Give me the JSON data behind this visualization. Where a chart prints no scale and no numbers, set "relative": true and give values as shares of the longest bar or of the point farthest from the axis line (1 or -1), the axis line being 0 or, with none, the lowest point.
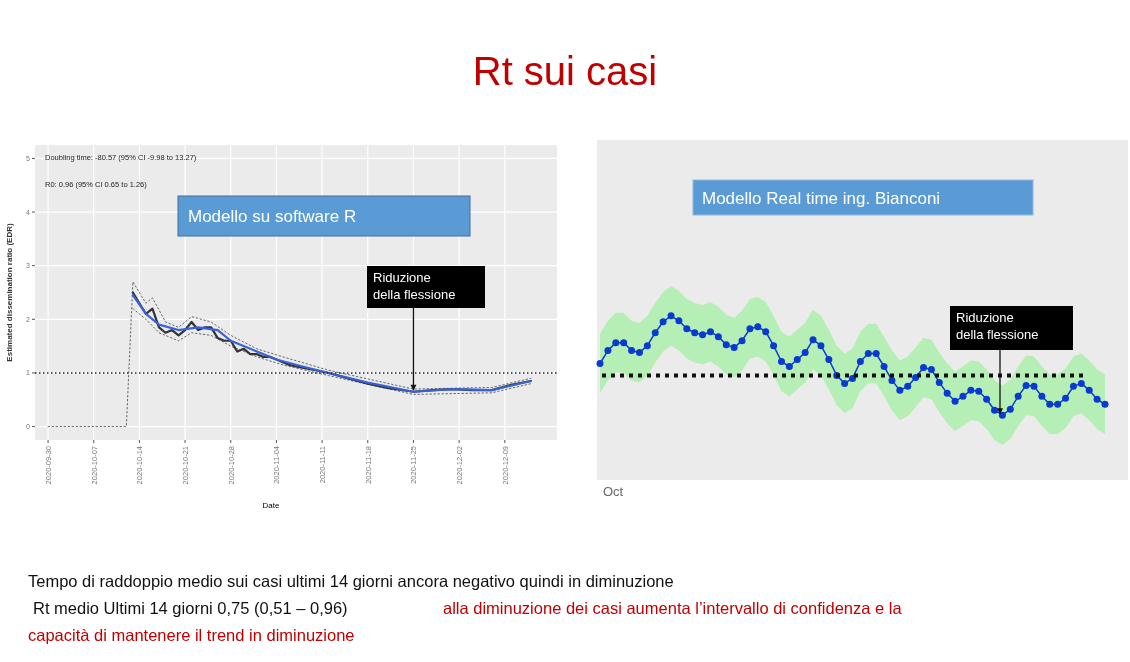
{
  "chart_data": [
    {
      "type": "line",
      "title": "Rt sui casi",
      "xlabel": "Date",
      "ylabel": "Estimated dissemination ratio (EDR)",
      "xlim": [
        "2020-09-28",
        "2020-12-17"
      ],
      "ylim": [
        -0.25,
        5.25
      ],
      "xticks": [
        "2020-09-30",
        "2020-10-07",
        "2020-10-14",
        "2020-10-21",
        "2020-10-28",
        "2020-11-04",
        "2020-11-11",
        "2020-11-18",
        "2020-11-25",
        "2020-12-02",
        "2020-12-09"
      ],
      "yticks": [
        0,
        1,
        2,
        3,
        4,
        5
      ],
      "grid": true,
      "ref_lines": [
        {
          "axis": "y",
          "value": 1,
          "color": "#222222",
          "line_style": "dotted"
        }
      ],
      "annotations": [
        "Doubling time: -80.57 (95% CI -9.98 to 13.27)",
        "R0: 0.96 (95% CI 0.65 to 1.26)",
        "Modello su software R",
        {
          "text": "Riduzione\ndella flessione",
          "x": "2020-11-25",
          "y": 0.65
        },
        "Tempo di raddoppio medio sui casi ultimi 14 giorni ancora negativo quindi in diminuzione",
        "Rt medio Ultimi 14 giorni 0,75 (0,51 – 0,96)",
        "alla diminuzione dei casi aumenta l’intervallo di confidenza e la",
        "capacità di mantenere il trend in diminuzione"
      ],
      "series": [
        {
          "color": "#666666",
          "line_style": "dotted",
          "x": [
            "2020-09-30",
            "2020-10-12",
            "2020-10-13",
            "2020-10-15",
            "2020-10-16",
            "2020-10-18",
            "2020-10-20",
            "2020-10-22",
            "2020-10-25",
            "2020-10-28",
            "2020-11-01",
            "2020-11-05",
            "2020-11-12",
            "2020-11-25",
            "2020-12-07",
            "2020-12-13"
          ],
          "values": [
            0,
            0,
            2.7,
            2.3,
            2.4,
            1.95,
            1.85,
            2.05,
            1.95,
            1.7,
            1.45,
            1.3,
            1.05,
            0.7,
            0.73,
            0.9
          ]
        },
        {
          "color": "#666666",
          "line_style": "dotted",
          "x": [
            "2020-10-13",
            "2020-10-15",
            "2020-10-17",
            "2020-10-20",
            "2020-10-22",
            "2020-10-25",
            "2020-10-28",
            "2020-11-01",
            "2020-11-05",
            "2020-11-12",
            "2020-11-25",
            "2020-12-07",
            "2020-12-13"
          ],
          "values": [
            2.2,
            2.0,
            1.75,
            1.6,
            1.75,
            1.7,
            1.5,
            1.3,
            1.15,
            0.95,
            0.6,
            0.63,
            0.8
          ]
        },
        {
          "color": "#333333",
          "x": [
            "2020-10-13",
            "2020-10-14",
            "2020-10-15",
            "2020-10-16",
            "2020-10-17",
            "2020-10-18",
            "2020-10-19",
            "2020-10-20",
            "2020-10-21",
            "2020-10-22",
            "2020-10-23",
            "2020-10-24",
            "2020-10-25",
            "2020-10-26",
            "2020-10-27",
            "2020-10-28",
            "2020-10-29",
            "2020-10-30",
            "2020-10-31",
            "2020-11-01",
            "2020-11-02",
            "2020-11-03",
            "2020-11-04",
            "2020-11-05",
            "2020-11-06",
            "2020-11-07",
            "2020-11-08",
            "2020-11-10",
            "2020-11-12",
            "2020-11-15",
            "2020-11-18",
            "2020-11-21",
            "2020-11-25",
            "2020-11-28",
            "2020-12-01",
            "2020-12-04",
            "2020-12-07",
            "2020-12-10",
            "2020-12-13"
          ],
          "values": [
            2.5,
            2.3,
            2.1,
            2.2,
            1.85,
            1.75,
            1.8,
            1.7,
            1.8,
            1.95,
            1.8,
            1.85,
            1.85,
            1.65,
            1.6,
            1.6,
            1.4,
            1.45,
            1.35,
            1.35,
            1.3,
            1.3,
            1.25,
            1.2,
            1.15,
            1.12,
            1.1,
            1.05,
            1.0,
            0.9,
            0.8,
            0.72,
            0.65,
            0.68,
            0.7,
            0.68,
            0.68,
            0.78,
            0.85
          ]
        },
        {
          "color": "#3a62d8",
          "x": [
            "2020-10-13",
            "2020-10-15",
            "2020-10-17",
            "2020-10-20",
            "2020-10-23",
            "2020-10-26",
            "2020-10-28",
            "2020-11-01",
            "2020-11-04",
            "2020-11-08",
            "2020-11-12",
            "2020-11-18",
            "2020-11-25",
            "2020-12-01",
            "2020-12-07",
            "2020-12-13"
          ],
          "values": [
            2.45,
            2.1,
            1.9,
            1.8,
            1.85,
            1.8,
            1.6,
            1.4,
            1.25,
            1.12,
            1.0,
            0.82,
            0.65,
            0.7,
            0.68,
            0.85
          ]
        }
      ]
    },
    {
      "type": "line",
      "relative": true,
      "marker": "circle",
      "categories": [
        null,
        null,
        null,
        null,
        null,
        null,
        null,
        null,
        null,
        null,
        null,
        null,
        null,
        null,
        null,
        null,
        null,
        null,
        null,
        null,
        null,
        null,
        null,
        null,
        null,
        null,
        null,
        null,
        null,
        null,
        null,
        null,
        null,
        null,
        null,
        null,
        null,
        null,
        null,
        null,
        null,
        null,
        null,
        null,
        null,
        null,
        null,
        null,
        null,
        null,
        null,
        null,
        null,
        null,
        null,
        null,
        null,
        null,
        null,
        null,
        null,
        null,
        null,
        null,
        null
      ],
      "ref_lines": [
        {
          "axis": "y",
          "value": 0.4,
          "color": "#111111",
          "line_style": "dotted"
        }
      ],
      "annotations": [
        "Modello Real time ing. Bianconi",
        "Oct",
        {
          "text": "Riduzione\ndella flessione",
          "y": 0
        }
      ],
      "series": [
        {
          "color": "#0a3bd0",
          "values": [
            0.52,
            0.65,
            0.73,
            0.73,
            0.65,
            0.63,
            0.7,
            0.83,
            0.94,
            1.0,
            0.95,
            0.87,
            0.83,
            0.81,
            0.84,
            0.79,
            0.71,
            0.68,
            0.75,
            0.87,
            0.89,
            0.84,
            0.7,
            0.54,
            0.49,
            0.56,
            0.63,
            0.76,
            0.7,
            0.56,
            0.4,
            0.32,
            0.37,
            0.54,
            0.62,
            0.62,
            0.49,
            0.35,
            0.25,
            0.29,
            0.38,
            0.48,
            0.46,
            0.33,
            0.22,
            0.14,
            0.19,
            0.25,
            0.24,
            0.16,
            0.05,
            0,
            0.06,
            0.19,
            0.3,
            0.29,
            0.19,
            0.11,
            0.11,
            0.17,
            0.29,
            0.32,
            0.25,
            0.16,
            0.11
          ],
          "upper": [
            0.82,
            0.95,
            1.03,
            1.03,
            0.95,
            0.93,
            1.0,
            1.13,
            1.24,
            1.3,
            1.25,
            1.17,
            1.13,
            1.11,
            1.14,
            1.09,
            1.01,
            0.98,
            1.05,
            1.17,
            1.19,
            1.14,
            1.0,
            0.84,
            0.79,
            0.86,
            0.93,
            1.06,
            1.0,
            0.86,
            0.7,
            0.62,
            0.67,
            0.84,
            0.92,
            0.92,
            0.79,
            0.65,
            0.55,
            0.59,
            0.68,
            0.78,
            0.76,
            0.63,
            0.52,
            0.44,
            0.49,
            0.55,
            0.54,
            0.46,
            0.35,
            0.3,
            0.36,
            0.49,
            0.6,
            0.59,
            0.49,
            0.41,
            0.41,
            0.47,
            0.59,
            0.62,
            0.55,
            0.46,
            0.41
          ],
          "lower": [
            0.22,
            0.35,
            0.43,
            0.43,
            0.35,
            0.33,
            0.4,
            0.53,
            0.64,
            0.7,
            0.65,
            0.57,
            0.53,
            0.51,
            0.54,
            0.49,
            0.41,
            0.38,
            0.45,
            0.57,
            0.59,
            0.54,
            0.4,
            0.24,
            0.19,
            0.26,
            0.33,
            0.46,
            0.4,
            0.26,
            0.1,
            0.02,
            0.07,
            0.24,
            0.32,
            0.32,
            0.19,
            0.05,
            -0.05,
            -0.01,
            0.08,
            0.18,
            0.16,
            0.03,
            -0.08,
            -0.16,
            -0.11,
            -0.05,
            -0.06,
            -0.14,
            -0.25,
            -0.3,
            -0.24,
            -0.11,
            0.0,
            -0.01,
            -0.11,
            -0.19,
            -0.19,
            -0.13,
            -0.01,
            0.02,
            -0.05,
            -0.14,
            -0.19
          ]
        }
      ]
    }
  ]
}
